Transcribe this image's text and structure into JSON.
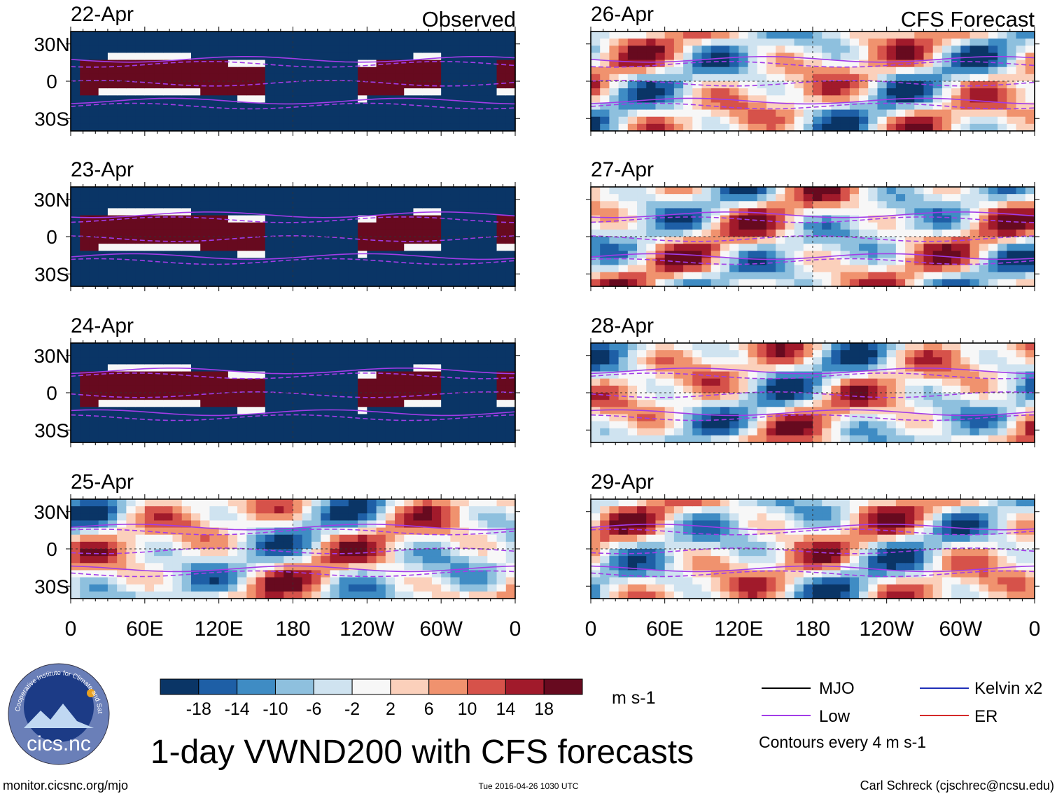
{
  "chart_data": {
    "type": "heatmap",
    "title": "1-day VWND200 with CFS forecasts",
    "variable": "VWND200",
    "units": "m s-1",
    "columns": [
      {
        "header": "Observed",
        "panels": [
          "22-Apr",
          "23-Apr",
          "24-Apr",
          "25-Apr"
        ]
      },
      {
        "header": "CFS Forecast",
        "panels": [
          "26-Apr",
          "27-Apr",
          "28-Apr",
          "29-Apr"
        ]
      }
    ],
    "y_ticks": [
      "30N",
      "0",
      "30S"
    ],
    "y_tick_values": [
      30,
      0,
      -30
    ],
    "ylim": [
      -40,
      40
    ],
    "x_ticks": [
      "0",
      "60E",
      "120E",
      "180",
      "120W",
      "60W",
      "0"
    ],
    "x_tick_values": [
      0,
      60,
      120,
      180,
      240,
      300,
      360
    ],
    "xlim": [
      0,
      360
    ],
    "colorbar": {
      "labels": [
        "-18",
        "-14",
        "-10",
        "-6",
        "-2",
        "2",
        "6",
        "10",
        "14",
        "18"
      ],
      "levels": [
        -18,
        -14,
        -10,
        -6,
        -2,
        2,
        6,
        10,
        14,
        18
      ],
      "colors": [
        "#0a3566",
        "#1e5fa6",
        "#3f8cc4",
        "#8ec0de",
        "#cfe3f0",
        "#f7f7f7",
        "#fbd0bb",
        "#f0926e",
        "#d6524a",
        "#a11a2b",
        "#670a1f"
      ]
    },
    "legend": [
      {
        "label": "MJO",
        "color": "#000000"
      },
      {
        "label": "Kelvin x2",
        "color": "#1f2fb8"
      },
      {
        "label": "Low",
        "color": "#a23ce8"
      },
      {
        "label": "ER",
        "color": "#d42a2a"
      }
    ],
    "contour_note": "Contours every 4 m s-1"
  },
  "footer": {
    "left": "monitor.cicsnc.org/mjo",
    "center": "Tue 2016-04-26 1030 UTC",
    "right": "Carl Schreck (cjschrec@ncsu.edu)"
  },
  "logo": {
    "text": "cics.nc",
    "ring_text": "Cooperative Institute for Climate and Satellites"
  },
  "colors": {
    "contour": "#a23ce8",
    "land": "#555555",
    "background": "#ffffff"
  }
}
